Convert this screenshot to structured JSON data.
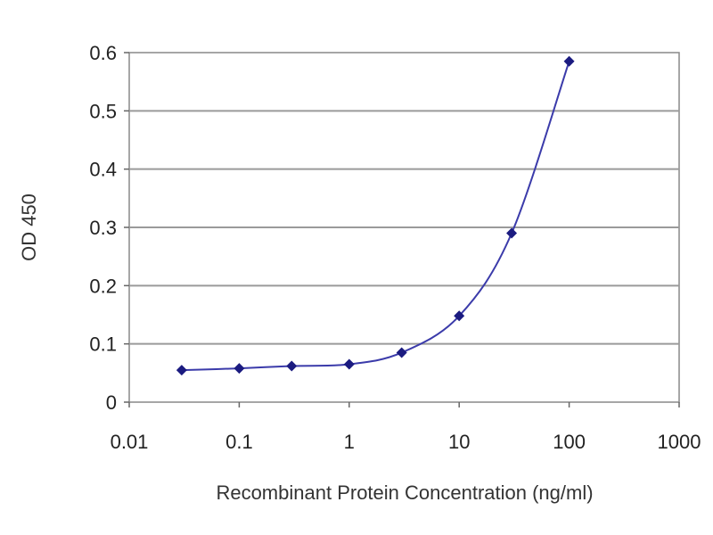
{
  "chart_data": {
    "type": "line",
    "title": "",
    "xlabel": "Recombinant Protein Concentration (ng/ml)",
    "ylabel": "OD 450",
    "x_scale": "log",
    "xlim": [
      0.01,
      1000
    ],
    "ylim": [
      0,
      0.6
    ],
    "x_ticks": [
      0.01,
      0.1,
      1,
      10,
      100,
      1000
    ],
    "x_tick_labels": [
      "0.01",
      "0.1",
      "1",
      "10",
      "100",
      "1000"
    ],
    "y_ticks": [
      0,
      0.1,
      0.2,
      0.3,
      0.4,
      0.5,
      0.6
    ],
    "y_tick_labels": [
      "0",
      "0.1",
      "0.2",
      "0.3",
      "0.4",
      "0.5",
      "0.6"
    ],
    "grid": "horizontal",
    "legend": "none",
    "series": [
      {
        "x": [
          0.03,
          0.1,
          0.3,
          1,
          3,
          10,
          30,
          100
        ],
        "y": [
          0.055,
          0.058,
          0.062,
          0.065,
          0.085,
          0.148,
          0.29,
          0.585
        ]
      }
    ],
    "colors": {
      "line": "#3b3baa",
      "marker": "#1b1b80",
      "grid": "#9a9a9a",
      "plot_border": "#888888"
    }
  }
}
